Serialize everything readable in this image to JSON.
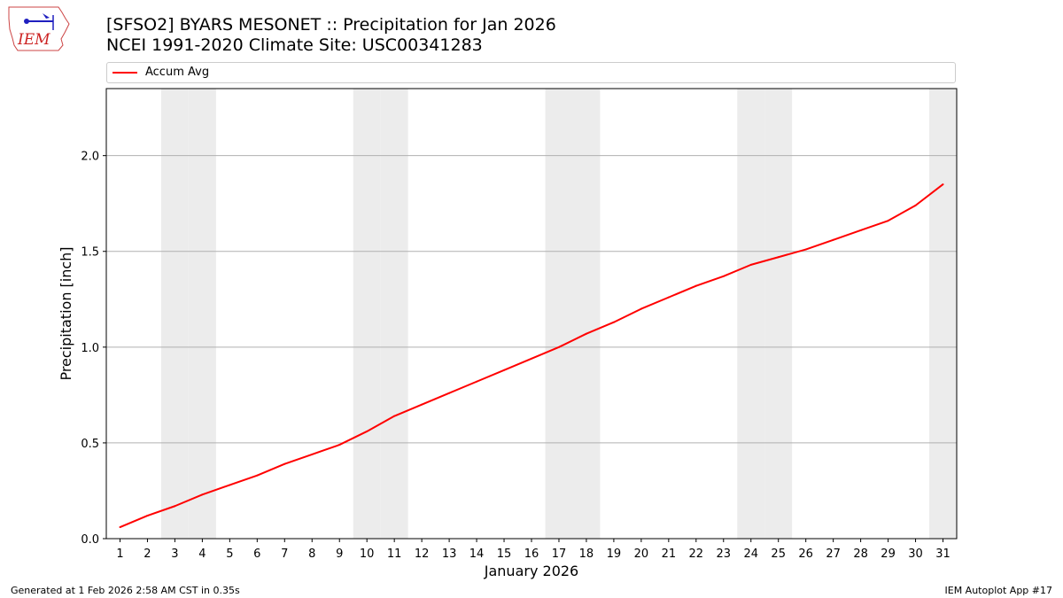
{
  "header": {
    "title_line1": "[SFSO2] BYARS MESONET :: Precipitation for Jan 2026",
    "title_line2": "NCEI 1991-2020 Climate Site: USC00341283"
  },
  "logo": {
    "text": "IEM",
    "icon": "iem-iowa-map-logo"
  },
  "legend": {
    "label": "Accum Avg",
    "color": "#ff0000"
  },
  "footer": {
    "left": "Generated at 1 Feb 2026 2:58 AM CST in 0.35s",
    "right": "IEM Autoplot App #17"
  },
  "colors": {
    "line": "#ff0000",
    "weekend_band": "#ececec",
    "grid": "#b0b0b0"
  },
  "chart_data": {
    "type": "line",
    "title": "[SFSO2] BYARS MESONET :: Precipitation for Jan 2026",
    "subtitle": "NCEI 1991-2020 Climate Site: USC00341283",
    "xlabel": "January 2026",
    "ylabel": "Precipitation [inch]",
    "x": [
      1,
      2,
      3,
      4,
      5,
      6,
      7,
      8,
      9,
      10,
      11,
      12,
      13,
      14,
      15,
      16,
      17,
      18,
      19,
      20,
      21,
      22,
      23,
      24,
      25,
      26,
      27,
      28,
      29,
      30,
      31
    ],
    "xlim": [
      0.5,
      31.5
    ],
    "ylim": [
      0,
      2.35
    ],
    "yticks": [
      0.0,
      0.5,
      1.0,
      1.5,
      2.0
    ],
    "ytick_labels": [
      "0.0",
      "0.5",
      "1.0",
      "1.5",
      "2.0"
    ],
    "grid": "horizontal",
    "legend_position": "top",
    "weekend_days": [
      3,
      4,
      10,
      11,
      17,
      18,
      24,
      25,
      31
    ],
    "series": [
      {
        "name": "Accum Avg",
        "color": "#ff0000",
        "values": [
          0.06,
          0.12,
          0.17,
          0.23,
          0.28,
          0.33,
          0.39,
          0.44,
          0.49,
          0.56,
          0.64,
          0.7,
          0.76,
          0.82,
          0.88,
          0.94,
          1.0,
          1.07,
          1.13,
          1.2,
          1.26,
          1.32,
          1.37,
          1.43,
          1.47,
          1.51,
          1.56,
          1.61,
          1.66,
          1.74,
          1.85
        ]
      }
    ]
  }
}
